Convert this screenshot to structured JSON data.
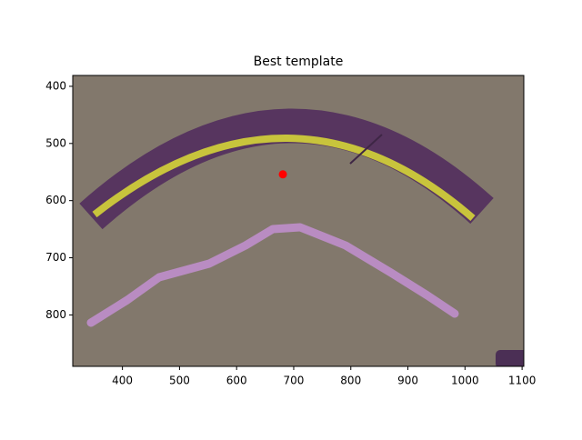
{
  "chart_data": {
    "type": "image",
    "title": "Best template",
    "xlim": [
      313,
      1103
    ],
    "ylim": [
      890,
      381
    ],
    "xticks": [
      400,
      500,
      600,
      700,
      800,
      900,
      1000,
      1100
    ],
    "yticks": [
      400,
      500,
      600,
      700,
      800
    ],
    "points": {
      "x": [
        681
      ],
      "y": [
        554
      ],
      "color": "#ff0000"
    }
  }
}
